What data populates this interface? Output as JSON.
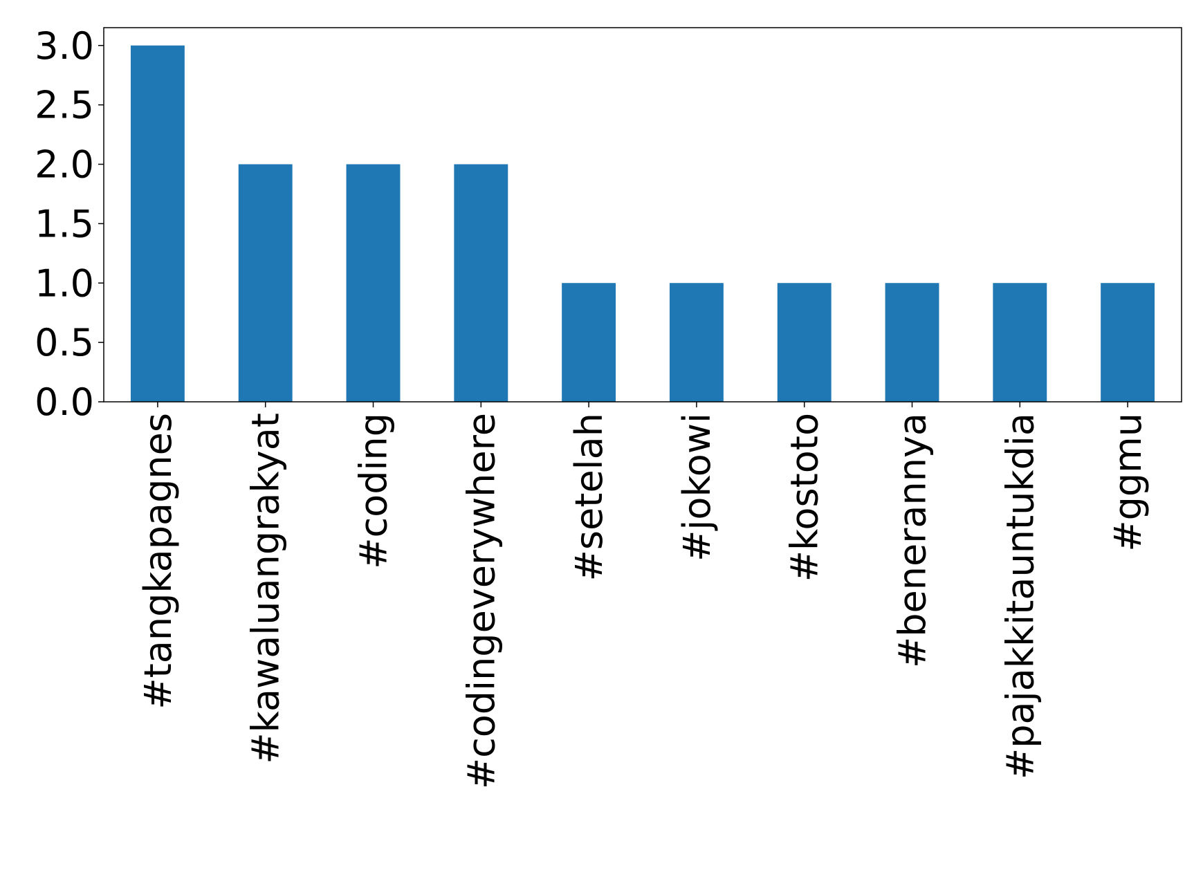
{
  "chart_data": {
    "type": "bar",
    "categories": [
      "#tangkapagnes",
      "#kawaluangrakyat",
      "#coding",
      "#codingeverywhere",
      "#setelah",
      "#jokowi",
      "#kostoto",
      "#benerannya",
      "#pajakkitauntukdia",
      "#ggmu"
    ],
    "values": [
      3,
      2,
      2,
      2,
      1,
      1,
      1,
      1,
      1,
      1
    ],
    "color": "#1f77b4",
    "ylim": [
      0,
      3.15
    ],
    "yticks": [
      {
        "value": 0,
        "label": "0.0"
      },
      0.5,
      {
        "value": 1,
        "label": "1.0"
      },
      1.5,
      {
        "value": 2,
        "label": "2.0"
      },
      2.5,
      {
        "value": 3,
        "label": "3.0"
      }
    ]
  }
}
